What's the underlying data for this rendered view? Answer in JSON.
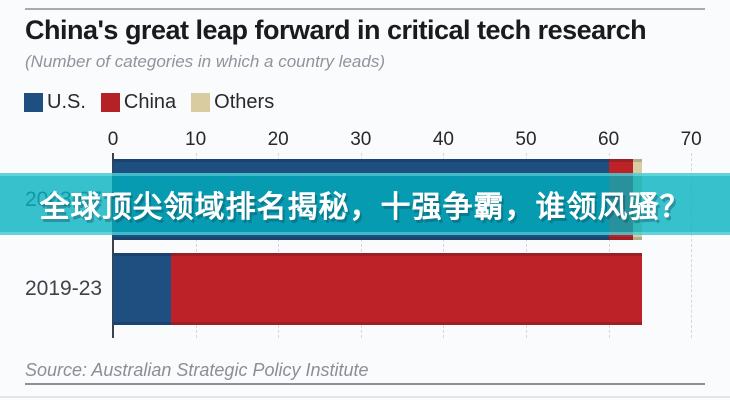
{
  "page": {
    "background": "#fafbfc"
  },
  "header": {
    "title": "China's great leap forward in critical tech research",
    "subtitle": "(Number of categories in which a country leads)"
  },
  "legend": {
    "items": [
      {
        "label": "U.S.",
        "color": "#1f4e80"
      },
      {
        "label": "China",
        "color": "#b42126"
      },
      {
        "label": "Others",
        "color": "#d9cca0"
      }
    ]
  },
  "overlay_banner": {
    "text": "全球顶尖领域排名揭秘，十强争霸，谁领风骚？",
    "text_color": "#ffffff",
    "background": "rgba(0,177,190,0.78)"
  },
  "chart_data": {
    "type": "bar",
    "orientation": "horizontal",
    "stacked": true,
    "title": "China's great leap forward in critical tech research",
    "subtitle": "(Number of categories in which a country leads)",
    "categories": [
      "2003-07",
      "2019-23"
    ],
    "series": [
      {
        "name": "U.S.",
        "color": "#1f4e80",
        "values": [
          60,
          7
        ]
      },
      {
        "name": "China",
        "color": "#bc2227",
        "values": [
          3,
          57
        ]
      },
      {
        "name": "Others",
        "color": "#d9cca0",
        "values": [
          1,
          0
        ]
      }
    ],
    "xlim": [
      0,
      70
    ],
    "xticks": [
      0,
      10,
      20,
      30,
      40,
      50,
      60,
      70
    ],
    "legend_position": "top",
    "grid": "faint-vertical-dashed",
    "source": "Source: Australian Strategic Policy Institute"
  },
  "footer": {
    "source": "Source: Australian Strategic Policy Institute"
  }
}
